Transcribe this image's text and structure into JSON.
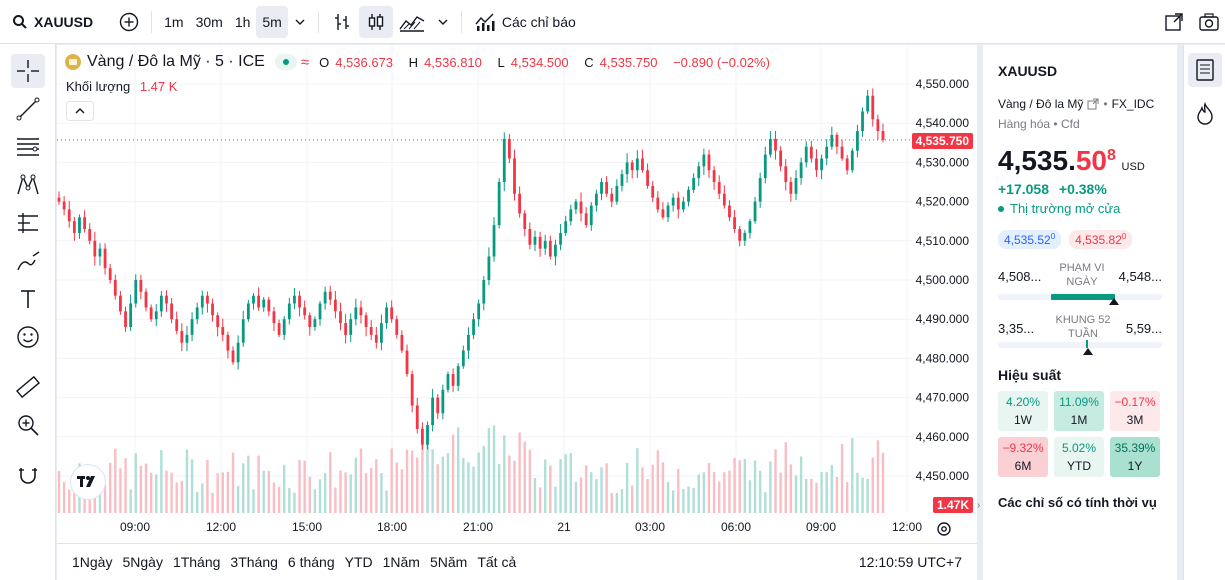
{
  "toolbar": {
    "symbol": "XAUUSD",
    "intervals": [
      "1m",
      "30m",
      "1h",
      "5m"
    ],
    "indicators_label": "Các chỉ báo"
  },
  "legend": {
    "title": "Vàng / Đô la Mỹ · 5 · ICE",
    "open_label": "O",
    "open": "4,536.673",
    "high_label": "H",
    "high": "4,536.810",
    "low_label": "L",
    "low": "4,534.500",
    "close_label": "C",
    "close": "4,535.750",
    "change": "−0.890 (−0.02%)",
    "volume_label": "Khối lượng",
    "volume": "1.47 K"
  },
  "price_axis": {
    "ticks": [
      "4,550.000",
      "4,540.000",
      "4,530.000",
      "4,520.000",
      "4,510.000",
      "4,500.000",
      "4,490.000",
      "4,480.000",
      "4,470.000",
      "4,460.000",
      "4,450.000"
    ],
    "last_price_tag": "4,535.750",
    "volume_tag": "1.47K"
  },
  "time_axis": {
    "ticks": [
      "09:00",
      "12:00",
      "15:00",
      "18:00",
      "21:00",
      "21",
      "03:00",
      "06:00",
      "09:00",
      "12:00"
    ]
  },
  "ranges": [
    "1Ngày",
    "5Ngày",
    "1Tháng",
    "3Tháng",
    "6 tháng",
    "YTD",
    "1Năm",
    "5Năm",
    "Tất cả"
  ],
  "clock": "12:10:59 UTC+7",
  "colors": {
    "up": "#089981",
    "down": "#f23645",
    "accent": "#2962ff"
  },
  "panel": {
    "symbol": "XAUUSD",
    "name": "Vàng / Đô la Mỹ",
    "exchange": "FX_IDC",
    "category": "Hàng hóa",
    "type": "Cfd",
    "price_main": "4,535.",
    "price_dec": "50",
    "price_sup": "8",
    "currency": "USD",
    "change": "+17.058",
    "change_pct": "+0.38%",
    "market_status": "Thị trường mở cửa",
    "bid": "4,535.52",
    "bid_sup": "0",
    "ask": "4,535.82",
    "ask_sup": "0",
    "day_range_label": "PHẠM VI NGÀY",
    "day_low": "4,508...",
    "day_high": "4,548...",
    "week52_label": "KHUNG 52 TUẦN",
    "week52_low": "3,35...",
    "week52_high": "5,59...",
    "perf_title": "Hiệu suất",
    "perf": [
      {
        "value": "4.20%",
        "label": "1W"
      },
      {
        "value": "11.09%",
        "label": "1M"
      },
      {
        "value": "−0.17%",
        "label": "3M"
      },
      {
        "value": "−9.32%",
        "label": "6M"
      },
      {
        "value": "5.02%",
        "label": "YTD"
      },
      {
        "value": "35.39%",
        "label": "1Y"
      }
    ],
    "seasonal_title": "Các chỉ số có tính thời vụ"
  },
  "chart_data": {
    "type": "candlestick",
    "ylim": [
      4443,
      4552
    ],
    "closes": [
      4520,
      4518,
      4515,
      4512,
      4516,
      4513,
      4510,
      4506,
      4508,
      4503,
      4500,
      4496,
      4492,
      4488,
      4494,
      4500,
      4497,
      4493,
      4490,
      4492,
      4496,
      4494,
      4490,
      4487,
      4484,
      4486,
      4490,
      4493,
      4496,
      4494,
      4491,
      4488,
      4486,
      4482,
      4479,
      4484,
      4490,
      4494,
      4496,
      4493,
      4495,
      4492,
      4489,
      4486,
      4490,
      4494,
      4496,
      4493,
      4491,
      4488,
      4490,
      4494,
      4497,
      4495,
      4492,
      4489,
      4486,
      4490,
      4493,
      4491,
      4488,
      4486,
      4484,
      4489,
      4493,
      4490,
      4486,
      4482,
      4476,
      4468,
      4462,
      4458,
      4463,
      4470,
      4466,
      4472,
      4476,
      4473,
      4478,
      4482,
      4486,
      4490,
      4494,
      4500,
      4506,
      4514,
      4525,
      4536,
      4531,
      4522,
      4517,
      4513,
      4509,
      4511,
      4508,
      4510,
      4506,
      4509,
      4512,
      4515,
      4518,
      4520,
      4517,
      4514,
      4519,
      4522,
      4525,
      4522,
      4520,
      4524,
      4527,
      4530,
      4528,
      4531,
      4528,
      4524,
      4521,
      4518,
      4516,
      4519,
      4521,
      4518,
      4520,
      4523,
      4526,
      4529,
      4532,
      4528,
      4525,
      4522,
      4519,
      4516,
      4513,
      4510,
      4512,
      4515,
      4520,
      4526,
      4532,
      4536,
      4533,
      4529,
      4525,
      4522,
      4526,
      4530,
      4534,
      4531,
      4528,
      4531,
      4534,
      4537,
      4534,
      4531,
      4528,
      4533,
      4538,
      4543,
      4547,
      4541,
      4538,
      4535.75
    ]
  }
}
